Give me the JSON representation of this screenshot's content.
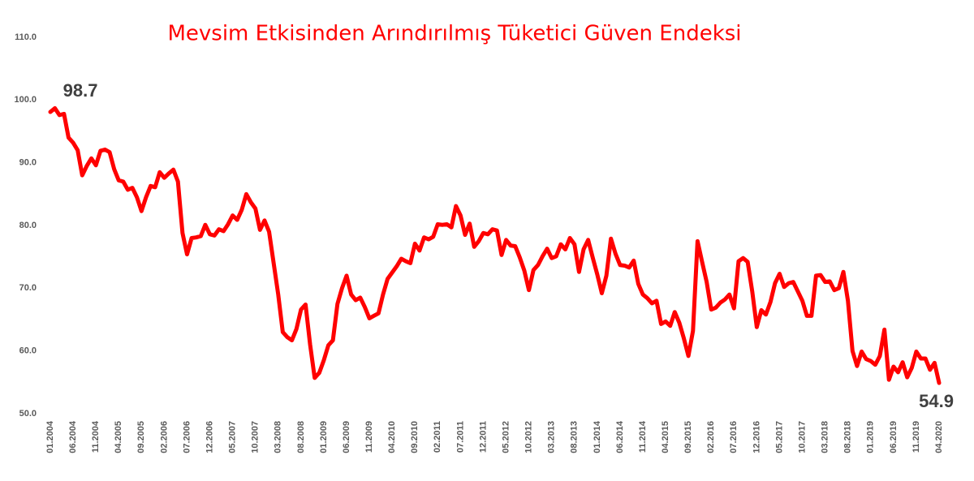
{
  "chart_data": {
    "type": "line",
    "title": "Mevsim Etkisinden Arındırılmış Tüketici Güven Endeksi",
    "color": "#ff0000",
    "categories": [
      "01.2004",
      null,
      null,
      null,
      null,
      "06.2004",
      null,
      null,
      null,
      null,
      "11.2004",
      null,
      null,
      null,
      null,
      "04.2005",
      null,
      null,
      null,
      null,
      "09.2005",
      null,
      null,
      null,
      null,
      "02.2006",
      null,
      null,
      null,
      null,
      "07.2006",
      null,
      null,
      null,
      null,
      "12.2006",
      null,
      null,
      null,
      null,
      "05.2007",
      null,
      null,
      null,
      null,
      "10.2007",
      null,
      null,
      null,
      null,
      "03.2008",
      null,
      null,
      null,
      null,
      "08.2008",
      null,
      null,
      null,
      null,
      "01.2009",
      null,
      null,
      null,
      null,
      "06.2009",
      null,
      null,
      null,
      null,
      "11.2009",
      null,
      null,
      null,
      null,
      "04.2010",
      null,
      null,
      null,
      null,
      "09.2010",
      null,
      null,
      null,
      null,
      "02.2011",
      null,
      null,
      null,
      null,
      "07.2011",
      null,
      null,
      null,
      null,
      "12.2011",
      null,
      null,
      null,
      null,
      "05.2012",
      null,
      null,
      null,
      null,
      "10.2012",
      null,
      null,
      null,
      null,
      "03.2013",
      null,
      null,
      null,
      null,
      "08.2013",
      null,
      null,
      null,
      null,
      "01.2014",
      null,
      null,
      null,
      null,
      "06.2014",
      null,
      null,
      null,
      null,
      "11.2014",
      null,
      null,
      null,
      null,
      "04.2015",
      null,
      null,
      null,
      null,
      "09.2015",
      null,
      null,
      null,
      null,
      "02.2016",
      null,
      null,
      null,
      null,
      "07.2016",
      null,
      null,
      null,
      null,
      "12.2016",
      null,
      null,
      null,
      null,
      "05.2017",
      null,
      null,
      null,
      null,
      "10.2017",
      null,
      null,
      null,
      null,
      "03.2018",
      null,
      null,
      null,
      null,
      "08.2018",
      null,
      null,
      null,
      null,
      "01.2019",
      null,
      null,
      null,
      null,
      "06.2019",
      null,
      null,
      null,
      null,
      "11.2019",
      null,
      null,
      null,
      null,
      "04.2020"
    ],
    "values": [
      98.1,
      98.7,
      97.6,
      97.8,
      94.0,
      93.2,
      92.0,
      88.0,
      89.5,
      90.7,
      89.6,
      91.9,
      92.1,
      91.7,
      89.0,
      87.2,
      87.0,
      85.7,
      86.0,
      84.5,
      82.3,
      84.5,
      86.3,
      86.1,
      88.5,
      87.6,
      88.3,
      88.9,
      87.0,
      78.8,
      75.4,
      78.0,
      78.1,
      78.3,
      80.1,
      78.6,
      78.4,
      79.4,
      79.1,
      80.2,
      81.6,
      80.9,
      82.5,
      85.0,
      83.7,
      82.7,
      79.3,
      80.8,
      79.0,
      74.0,
      69.0,
      63.0,
      62.2,
      61.7,
      63.5,
      66.6,
      67.4,
      61.0,
      55.7,
      56.5,
      58.5,
      60.9,
      61.7,
      67.5,
      70.0,
      72.0,
      69.0,
      68.1,
      68.5,
      67.0,
      65.2,
      65.6,
      66.0,
      69.0,
      71.5,
      72.5,
      73.5,
      74.7,
      74.3,
      74.0,
      77.1,
      76.0,
      78.1,
      77.8,
      78.2,
      80.2,
      80.1,
      80.2,
      79.7,
      83.1,
      81.6,
      78.5,
      80.3,
      76.6,
      77.5,
      78.8,
      78.6,
      79.4,
      79.2,
      75.3,
      77.7,
      76.8,
      76.7,
      74.9,
      72.8,
      69.7,
      72.9,
      73.7,
      75.1,
      76.3,
      74.8,
      75.1,
      77.0,
      76.2,
      78.0,
      77.0,
      72.6,
      76.2,
      77.7,
      74.9,
      72.2,
      69.2,
      72.0,
      77.9,
      75.5,
      73.7,
      73.6,
      73.3,
      74.4,
      70.7,
      69.0,
      68.4,
      67.6,
      68.0,
      64.3,
      64.7,
      64.0,
      66.2,
      64.5,
      62.0,
      59.2,
      63.2,
      77.5,
      74.2,
      71.0,
      66.6,
      66.9,
      67.7,
      68.2,
      69.0,
      66.8,
      74.3,
      74.8,
      74.2,
      69.5,
      63.8,
      66.5,
      65.8,
      67.8,
      70.8,
      72.3,
      70.2,
      70.8,
      71.0,
      69.5,
      68.0,
      65.6,
      65.6,
      72.0,
      72.1,
      71.0,
      71.1,
      69.7,
      70.0,
      72.6,
      68.0,
      60.0,
      57.6,
      59.9,
      58.7,
      58.4,
      57.8,
      59.2,
      63.4,
      55.4,
      57.5,
      56.6,
      58.2,
      55.8,
      57.3,
      59.9,
      58.8,
      58.8,
      57.0,
      58.1,
      54.9
    ],
    "ylim": [
      50,
      110
    ],
    "yticks": [
      {
        "value": 50,
        "label": "50.0"
      },
      {
        "value": 60,
        "label": "60.0"
      },
      {
        "value": 70,
        "label": "70.0"
      },
      {
        "value": 80,
        "label": "80.0"
      },
      {
        "value": 90,
        "label": "90.0"
      },
      {
        "value": 100,
        "label": "100.0"
      },
      {
        "value": 110,
        "label": "110.0"
      }
    ],
    "grid": false
  }
}
